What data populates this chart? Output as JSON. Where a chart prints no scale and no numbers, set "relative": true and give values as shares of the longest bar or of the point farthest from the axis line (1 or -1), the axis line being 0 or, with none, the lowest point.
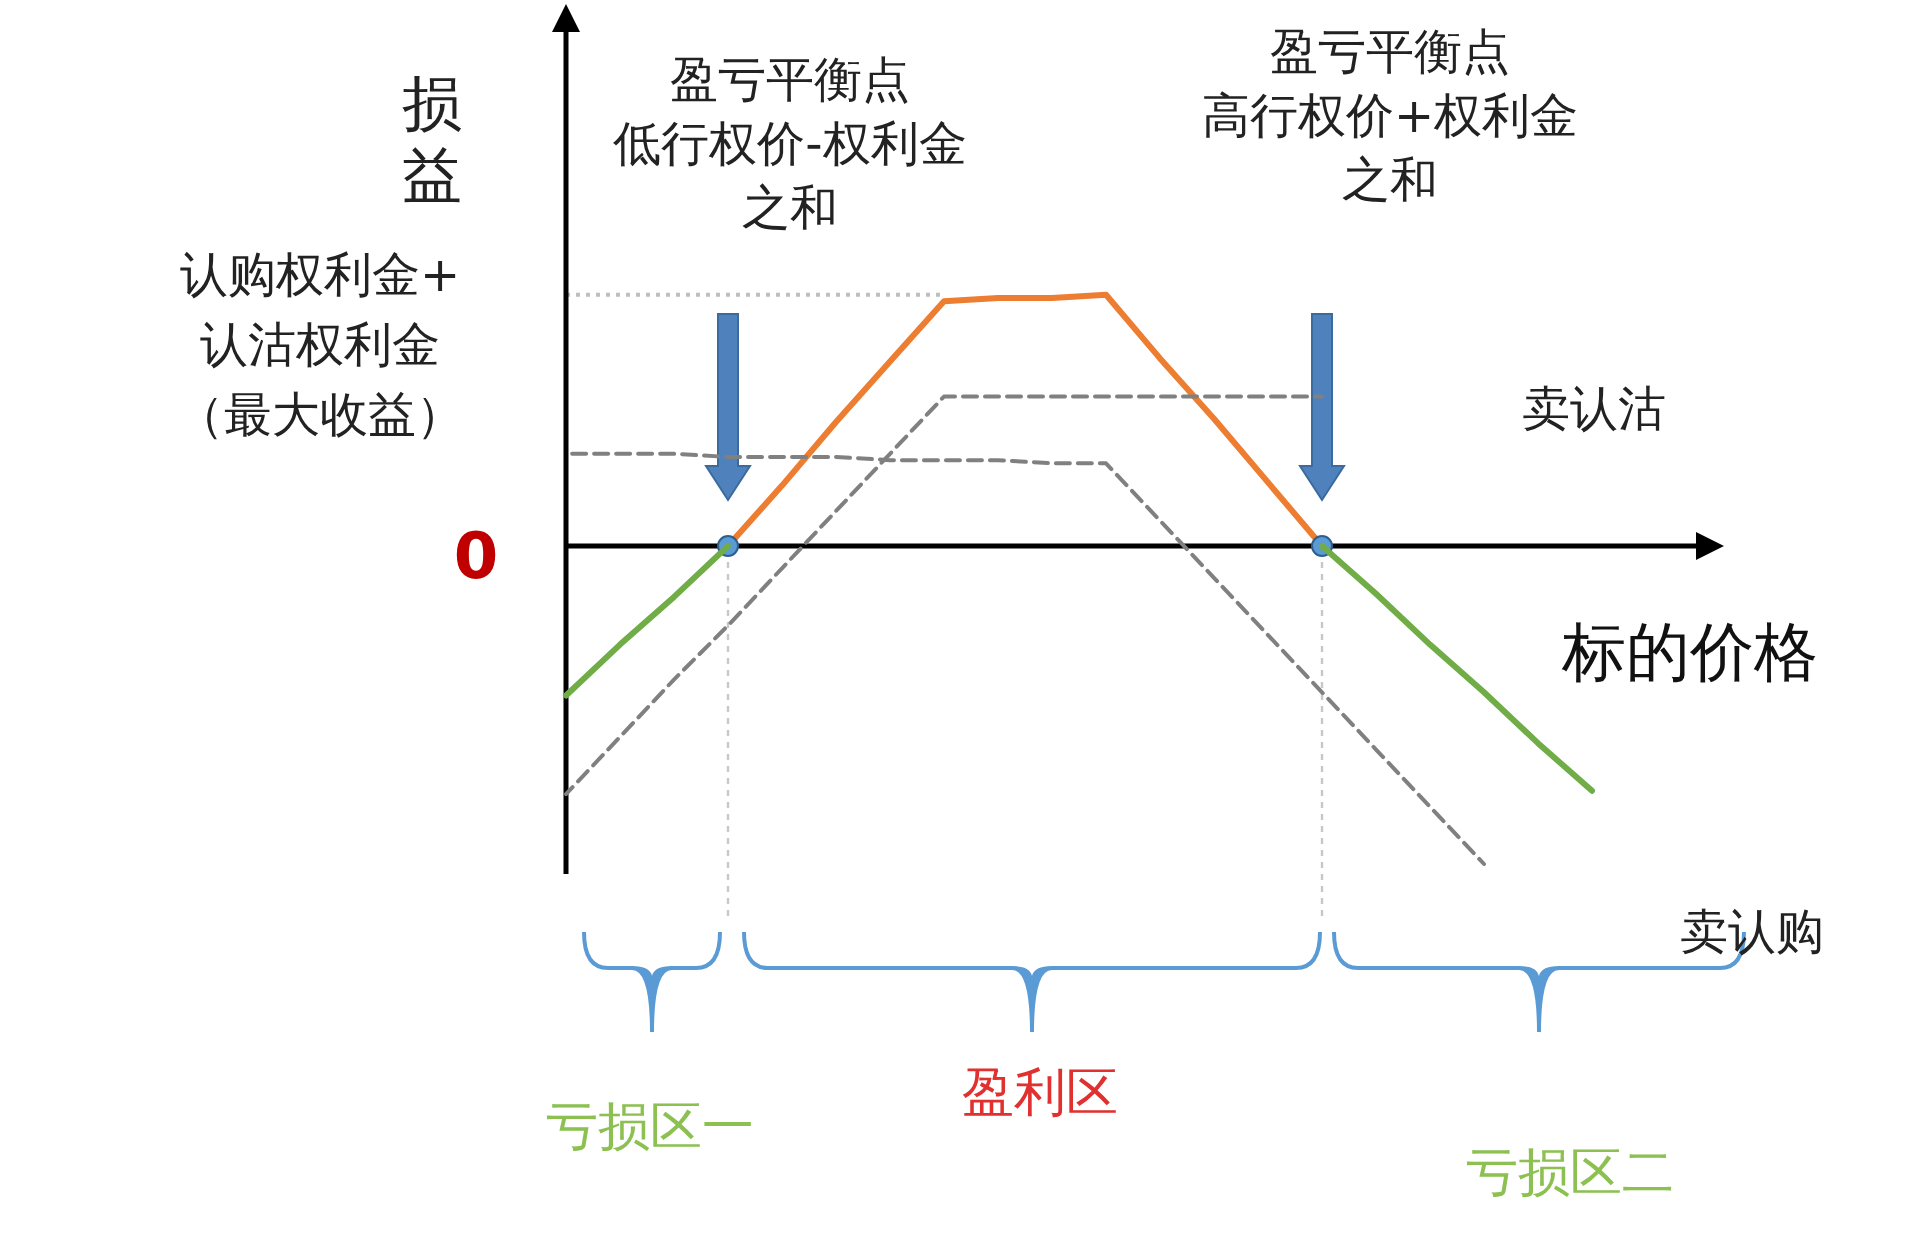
{
  "chart_data": {
    "type": "line",
    "relative": true,
    "xlabel": "标的价格",
    "ylabel": "损益",
    "legend": false,
    "grid": false,
    "categories": [
      null,
      null,
      null,
      null,
      null,
      null,
      null,
      null,
      null,
      null,
      null,
      null,
      null,
      null,
      null,
      null,
      null,
      null,
      null,
      null
    ],
    "series": [
      {
        "color": "#ed7d31",
        "values": [
          null,
          null,
          null,
          0,
          0.19,
          0.39,
          0.58,
          0.77,
          0.78,
          0.78,
          0.79,
          0.59,
          0.4,
          0.2,
          0,
          null,
          null,
          null,
          null,
          null
        ]
      },
      {
        "color": "#70ad47",
        "values": [
          -0.47,
          -0.31,
          -0.16,
          0,
          null,
          null,
          null,
          null,
          null,
          null,
          null,
          null,
          null,
          null,
          0,
          -0.15,
          -0.31,
          -0.46,
          -0.62,
          -0.77
        ]
      },
      {
        "name": "卖认购",
        "color": "#808080",
        "line_style": "dashed",
        "values": [
          0.29,
          0.29,
          0.29,
          0.28,
          0.28,
          0.28,
          0.27,
          0.27,
          0.27,
          0.26,
          0.26,
          0.08,
          -0.1,
          -0.28,
          -0.46,
          -0.64,
          -0.82,
          -1,
          null,
          null
        ]
      },
      {
        "name": "卖认沽",
        "color": "#808080",
        "line_style": "dashed",
        "values": [
          -0.78,
          -0.6,
          -0.42,
          -0.25,
          -0.07,
          0.11,
          0.29,
          0.47,
          0.47,
          0.47,
          0.47,
          0.47,
          0.47,
          0.47,
          0.47,
          null,
          null,
          null,
          null,
          null
        ]
      }
    ],
    "ref_lines": [
      {
        "axis": "y",
        "value": 0.79,
        "label": "认购权利金+认沽权利金（最大收益）",
        "color": "#bfbfbf",
        "line_style": "dotted"
      }
    ],
    "annotations": [
      "0",
      "盈亏平衡点低行权价-权利金之和",
      "盈亏平衡点高行权价+权利金之和",
      "亏损区一",
      "盈利区",
      "亏损区二"
    ]
  }
}
